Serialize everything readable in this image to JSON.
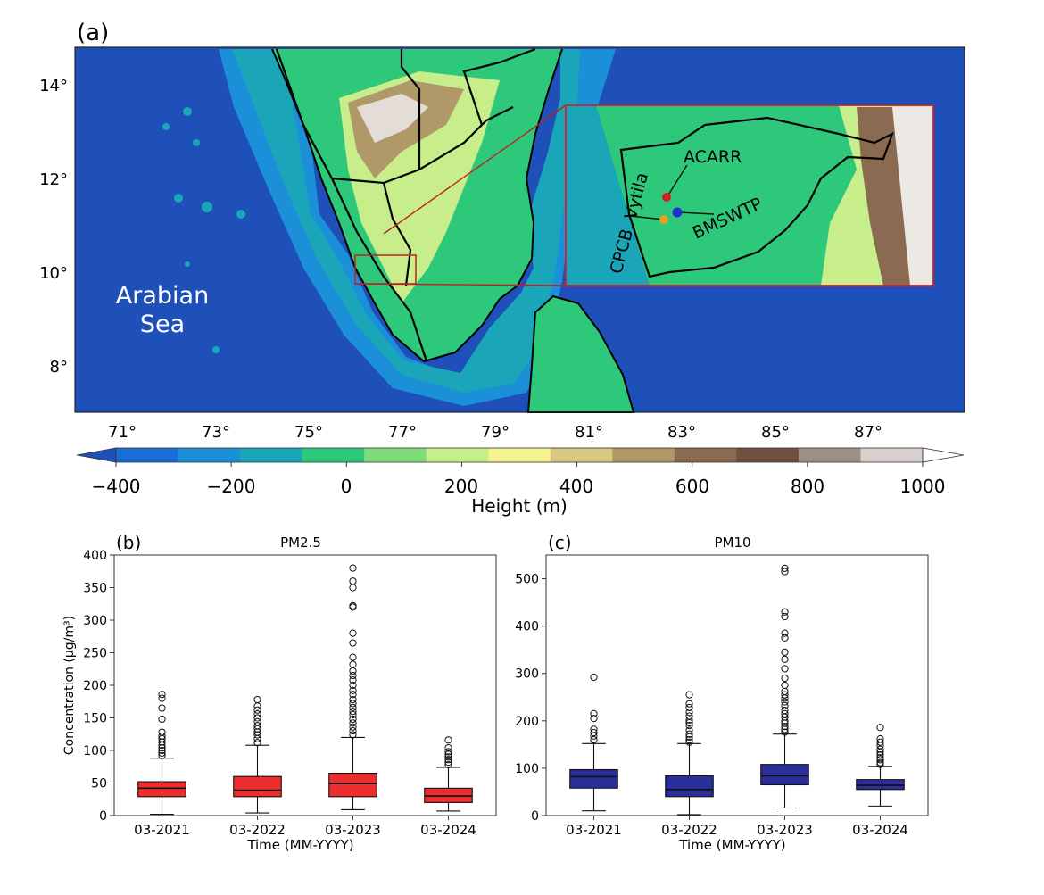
{
  "map_panel": {
    "panel_label": "(a)",
    "lon_ticks": [
      "71°",
      "73°",
      "75°",
      "77°",
      "79°",
      "81°",
      "83°",
      "85°",
      "87°"
    ],
    "lat_ticks": [
      "14°",
      "12°",
      "10°",
      "8°"
    ],
    "sea_label": [
      "Arabian",
      "Sea"
    ],
    "inset_labels": {
      "acarr": "ACARR",
      "bmswtp": "BMSWTP",
      "cpcb": "CPCB, Vytila"
    },
    "station_colors": {
      "acarr": "#d42020",
      "bmswtp": "#1f2fd0",
      "cpcb": "#e8a020"
    },
    "colorbar": {
      "label": "Height (m)",
      "tick_labels": [
        "−400",
        "−200",
        "0",
        "200",
        "400",
        "600",
        "800",
        "1000"
      ],
      "colors": [
        "#1f4fb8",
        "#1a6fd6",
        "#1b8fd8",
        "#1aa6b8",
        "#2dc87a",
        "#7fdc7a",
        "#c8ee8c",
        "#f4f490",
        "#d8c880",
        "#b09868",
        "#8a6a50",
        "#705040",
        "#a09088",
        "#d8d0cc",
        "#ffffff"
      ]
    }
  },
  "chart_data": [
    {
      "type": "box",
      "panel_label": "(b)",
      "title": "PM2.5",
      "xlabel": "Time (MM-YYYY)",
      "ylabel": "Concentration (µg/m³)",
      "ylim": [
        0,
        400
      ],
      "yticks": [
        0,
        50,
        100,
        150,
        200,
        250,
        300,
        350,
        400
      ],
      "color": "#ee2e2e",
      "categories": [
        "03-2021",
        "03-2022",
        "03-2023",
        "03-2024"
      ],
      "boxes": [
        {
          "whislo": 2,
          "q1": 29,
          "med": 42,
          "q3": 52,
          "whishi": 88,
          "fliers": [
            92,
            96,
            100,
            104,
            108,
            113,
            118,
            122,
            128,
            148,
            165,
            180,
            186
          ]
        },
        {
          "whislo": 4,
          "q1": 29,
          "med": 39,
          "q3": 60,
          "whishi": 108,
          "fliers": [
            112,
            118,
            124,
            128,
            133,
            138,
            144,
            150,
            156,
            162,
            168,
            178
          ]
        },
        {
          "whislo": 9,
          "q1": 29,
          "med": 49,
          "q3": 65,
          "whishi": 120,
          "fliers": [
            124,
            130,
            136,
            142,
            148,
            155,
            160,
            166,
            172,
            178,
            186,
            192,
            200,
            208,
            215,
            222,
            232,
            243,
            265,
            280,
            320,
            322,
            350,
            360,
            380
          ]
        },
        {
          "whislo": 7,
          "q1": 20,
          "med": 30,
          "q3": 42,
          "whishi": 74,
          "fliers": [
            78,
            82,
            86,
            90,
            94,
            98,
            104,
            116
          ]
        }
      ]
    },
    {
      "type": "box",
      "panel_label": "(c)",
      "title": "PM10",
      "xlabel": "Time (MM-YYYY)",
      "ylabel": "",
      "ylim": [
        0,
        550
      ],
      "yticks": [
        0,
        100,
        200,
        300,
        400,
        500
      ],
      "color": "#2a2f9a",
      "categories": [
        "03-2021",
        "03-2022",
        "03-2023",
        "03-2024"
      ],
      "boxes": [
        {
          "whislo": 10,
          "q1": 58,
          "med": 82,
          "q3": 97,
          "whishi": 152,
          "fliers": [
            160,
            168,
            175,
            182,
            205,
            215,
            292
          ]
        },
        {
          "whislo": 2,
          "q1": 40,
          "med": 55,
          "q3": 84,
          "whishi": 152,
          "fliers": [
            155,
            160,
            166,
            172,
            180,
            190,
            196,
            202,
            210,
            218,
            228,
            236,
            255
          ]
        },
        {
          "whislo": 16,
          "q1": 65,
          "med": 84,
          "q3": 108,
          "whishi": 172,
          "fliers": [
            176,
            182,
            188,
            195,
            200,
            208,
            215,
            222,
            232,
            240,
            248,
            255,
            262,
            275,
            290,
            310,
            330,
            345,
            375,
            385,
            420,
            430,
            515,
            522
          ]
        },
        {
          "whislo": 20,
          "q1": 55,
          "med": 64,
          "q3": 76,
          "whishi": 104,
          "fliers": [
            108,
            112,
            118,
            122,
            128,
            134,
            140,
            148,
            155,
            162,
            186
          ]
        }
      ]
    }
  ]
}
